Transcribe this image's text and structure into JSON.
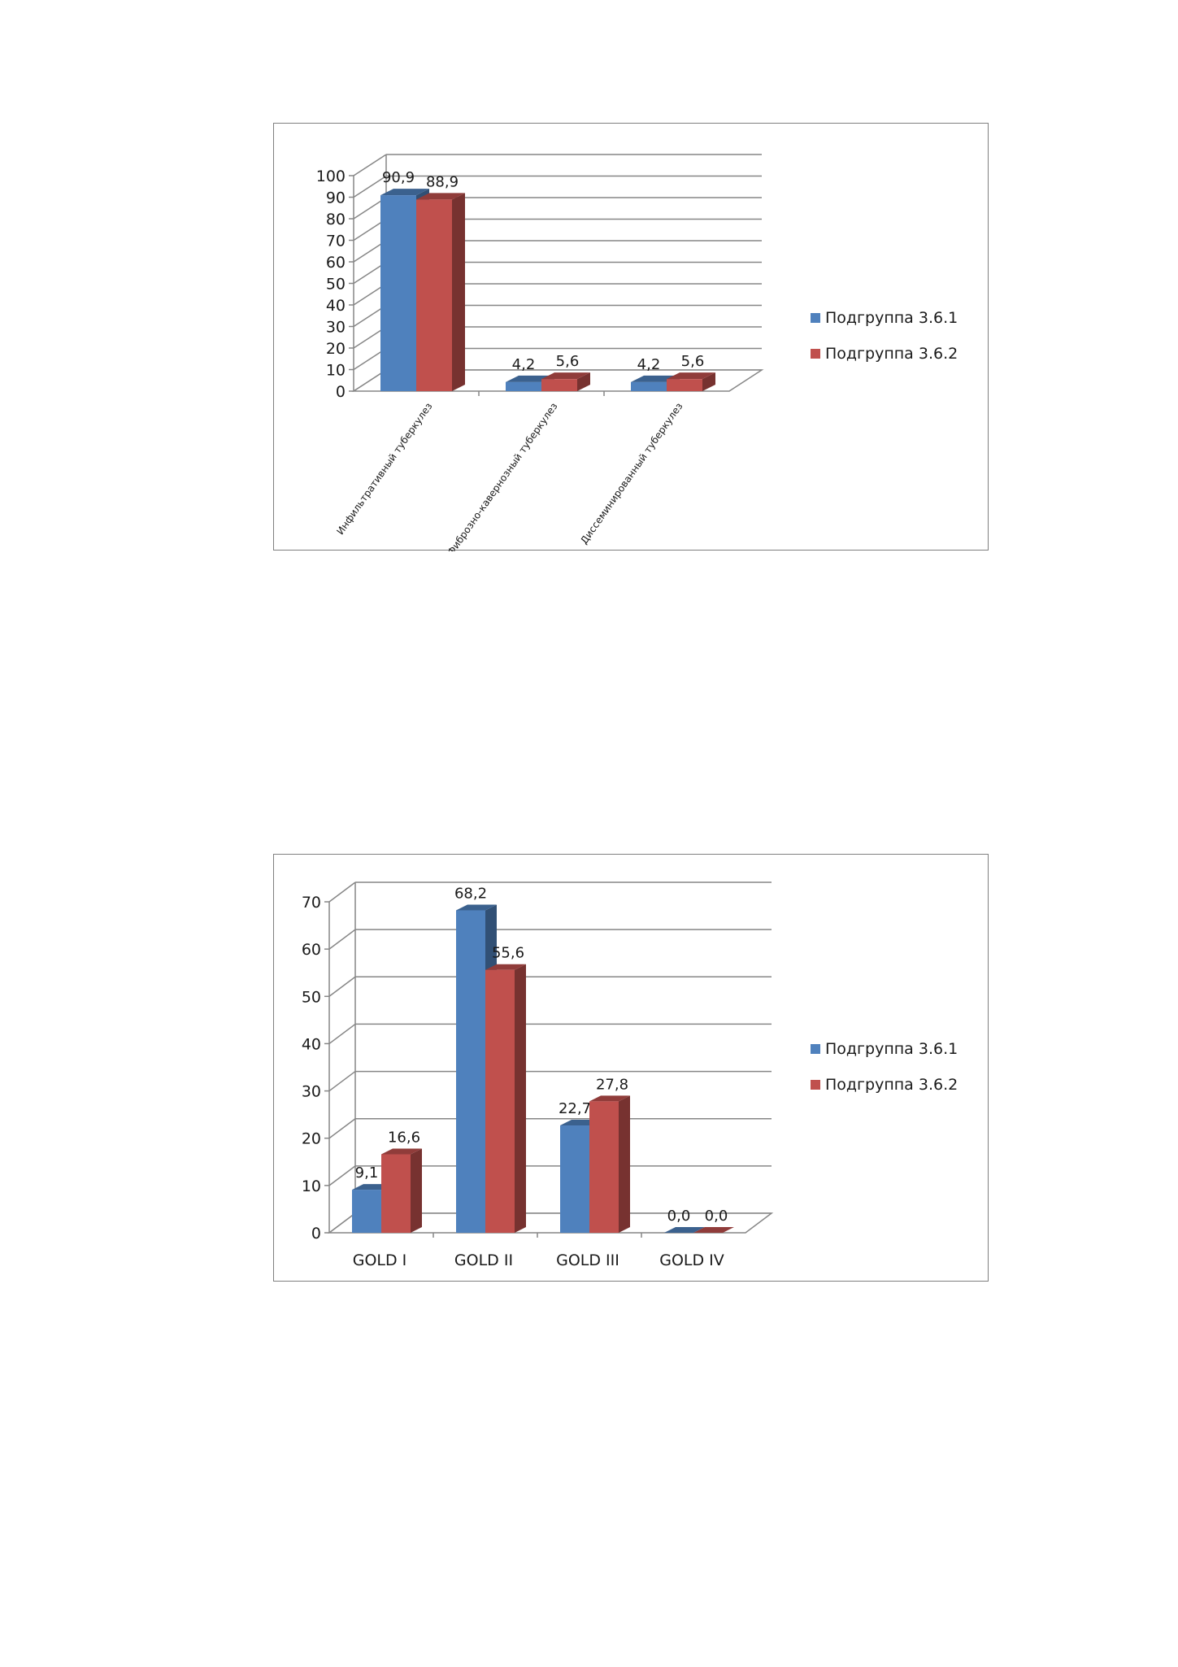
{
  "chart_data": [
    {
      "type": "bar",
      "title": "",
      "xlabel": "",
      "ylabel": "",
      "ylim": [
        0,
        100
      ],
      "yticks": [
        0,
        10,
        20,
        30,
        40,
        50,
        60,
        70,
        80,
        90,
        100
      ],
      "grid": true,
      "legend_position": "right",
      "categories": [
        "Инфильтративный туберкулез",
        "Фиброзно-кавернозный туберкулез",
        "Диссеминированный туберкулез"
      ],
      "series": [
        {
          "name": "Подгруппа 3.6.1",
          "values": [
            90.9,
            4.2,
            4.2
          ],
          "labels": [
            "90,9",
            "4,2",
            "4,2"
          ],
          "color": "#4f81bd"
        },
        {
          "name": "Подгруппа 3.6.2",
          "values": [
            88.9,
            5.6,
            5.6
          ],
          "labels": [
            "88,9",
            "5,6",
            "5,6"
          ],
          "color": "#c0504d"
        }
      ]
    },
    {
      "type": "bar",
      "title": "",
      "xlabel": "",
      "ylabel": "",
      "ylim": [
        0,
        70
      ],
      "yticks": [
        0,
        10,
        20,
        30,
        40,
        50,
        60,
        70
      ],
      "grid": true,
      "legend_position": "right",
      "categories": [
        "GOLD I",
        "GOLD II",
        "GOLD III",
        "GOLD IV"
      ],
      "series": [
        {
          "name": "Подгруппа 3.6.1",
          "values": [
            9.1,
            68.2,
            22.7,
            0.0
          ],
          "labels": [
            "9,1",
            "68,2",
            "22,7",
            "0,0"
          ],
          "color": "#4f81bd"
        },
        {
          "name": "Подгруппа 3.6.2",
          "values": [
            16.6,
            55.6,
            27.8,
            0.0
          ],
          "labels": [
            "16,6",
            "55,6",
            "27,8",
            "0,0"
          ],
          "color": "#c0504d"
        }
      ]
    }
  ]
}
